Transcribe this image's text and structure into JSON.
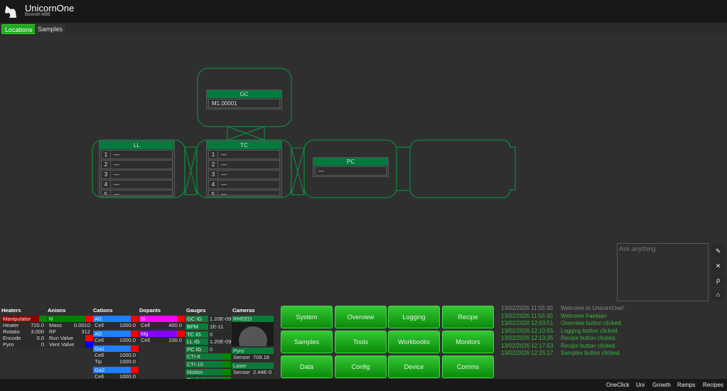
{
  "app": {
    "title": "UnicornOne",
    "subtitle": "Bismuth MBE"
  },
  "tabs": [
    {
      "label": "Locations",
      "active": true
    },
    {
      "label": "Samples",
      "active": false
    }
  ],
  "chambers": {
    "GC": {
      "label": "GC",
      "slots": [
        "M1.00001"
      ]
    },
    "LL": {
      "label": "LL",
      "slots": [
        {
          "n": "1",
          "v": "—"
        },
        {
          "n": "2",
          "v": "—"
        },
        {
          "n": "3",
          "v": "—"
        },
        {
          "n": "4",
          "v": "—"
        },
        {
          "n": "5",
          "v": "—"
        }
      ]
    },
    "TC": {
      "label": "TC",
      "slots": [
        {
          "n": "1",
          "v": "—"
        },
        {
          "n": "2",
          "v": "—"
        },
        {
          "n": "3",
          "v": "—"
        },
        {
          "n": "4",
          "v": "—"
        },
        {
          "n": "5",
          "v": "—"
        }
      ]
    },
    "PC": {
      "label": "PC",
      "slots": [
        "—"
      ]
    }
  },
  "chat": {
    "placeholder": "Ask anything",
    "icons": [
      "eraser-icon",
      "close-icon",
      "pin-icon",
      "home-icon"
    ]
  },
  "heaters": {
    "title": "Heaters",
    "name": "Manipulator",
    "color": "#8b0000",
    "rows": [
      {
        "k": "Heater",
        "v": "720.0"
      },
      {
        "k": "Rotatio",
        "v": "3.000"
      },
      {
        "k": "Encode",
        "v": "0.0"
      },
      {
        "k": "Pyro",
        "v": "0"
      }
    ]
  },
  "anions": {
    "title": "Anions",
    "name": "N",
    "color": "#008000",
    "rows": [
      {
        "k": "Mass",
        "v": "0.0010"
      },
      {
        "k": "RF",
        "v": "312"
      }
    ],
    "valves": [
      {
        "k": "Run Valve",
        "color": "#ff0000"
      },
      {
        "k": "Vent Valve",
        "color": "#0000ff"
      }
    ]
  },
  "cations": {
    "title": "Cations",
    "items": [
      {
        "name": "Al1",
        "rows": [
          {
            "k": "Cell",
            "v": "1000.0"
          }
        ]
      },
      {
        "name": "Al2",
        "rows": [
          {
            "k": "Cell",
            "v": "1000.0"
          }
        ]
      },
      {
        "name": "Ga1",
        "rows": [
          {
            "k": "Cell",
            "v": "1000.0"
          },
          {
            "k": "Tip",
            "v": "1000.0"
          }
        ]
      },
      {
        "name": "Ga2",
        "rows": [
          {
            "k": "Cell",
            "v": "1000.0"
          }
        ]
      }
    ],
    "color": "#1e7fff"
  },
  "dopants": {
    "title": "Dopants",
    "items": [
      {
        "name": "Si",
        "color": "#ff00ff",
        "rows": [
          {
            "k": "Cell",
            "v": "400.0"
          }
        ]
      },
      {
        "name": "Mg",
        "color": "#8a00ff",
        "rows": [
          {
            "k": "Cell",
            "v": "100.0"
          }
        ]
      }
    ]
  },
  "gauges": {
    "title": "Gauges",
    "items": [
      {
        "k": "GC IG",
        "v": "1.20E-09"
      },
      {
        "k": "BFM",
        "v": "1E-11"
      },
      {
        "k": "TC IG",
        "v": "0"
      },
      {
        "k": "LL IG",
        "v": "1.20E-09"
      },
      {
        "k": "PC IG",
        "v": "0"
      }
    ],
    "pumps": [
      "CTI-8",
      "CTI-10",
      "Motion",
      "Coolant"
    ]
  },
  "cameras": {
    "title": "Cameras",
    "rheed": "RHEED",
    "pyro": {
      "label": "Pyro",
      "k": "Sensor",
      "v": "709.18"
    },
    "laser": {
      "label": "Laser",
      "k": "Sensor",
      "v": "2.44E-0"
    }
  },
  "buttons": [
    "System",
    "Overview",
    "Logging",
    "Recipe",
    "Samples",
    "Tools",
    "Workbooks",
    "Monitors",
    "Data",
    "Config",
    "Device",
    "Comms"
  ],
  "log": [
    {
      "t": "13/02/2026 11:55:30",
      "m": "Welcome to UnicornOne!",
      "color": "#8a8a8a"
    },
    {
      "t": "13/02/2026 11:55:30",
      "m": "Welcome Faebian",
      "color": "#3cb53c"
    },
    {
      "t": "13/02/2026 12:03:51",
      "m": "Overview button clicked.",
      "color": "#3cb53c"
    },
    {
      "t": "13/02/2026 12:10:55",
      "m": "Logging button clicked.",
      "color": "#3cb53c"
    },
    {
      "t": "13/02/2026 12:13:35",
      "m": "Recipe button clicked.",
      "color": "#3cb53c"
    },
    {
      "t": "13/02/2026 12:17:53",
      "m": "Recipe button clicked.",
      "color": "#3cb53c"
    },
    {
      "t": "13/02/2026 12:25:17",
      "m": "Samples button clicked.",
      "color": "#3cb53c"
    }
  ],
  "footer": [
    "OneClick",
    "Uni",
    "Growth",
    "Ramps",
    "Recipes"
  ]
}
